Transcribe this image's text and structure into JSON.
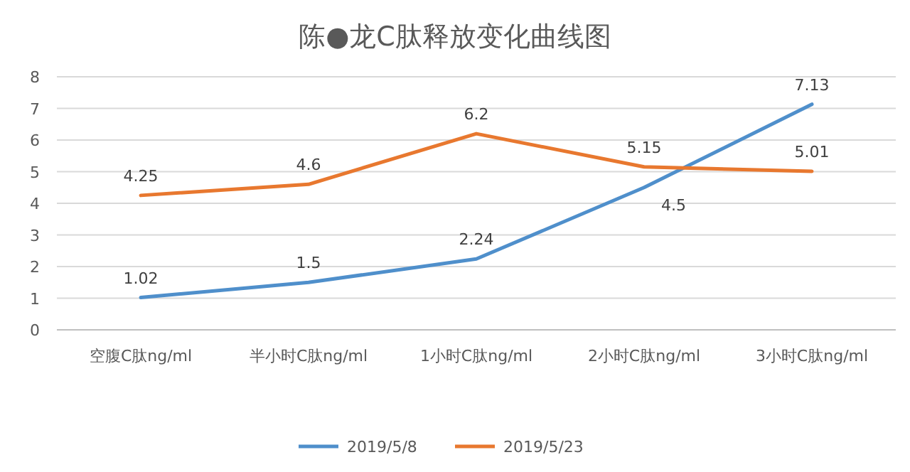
{
  "chart_data": {
    "type": "line",
    "title": "陈●龙C肽释放变化曲线图",
    "categories": [
      "空腹C肽ng/ml",
      "半小时C肽ng/ml",
      "1小时C肽ng/ml",
      "2小时C肽ng/ml",
      "3小时C肽ng/ml"
    ],
    "series": [
      {
        "name": "2019/5/8",
        "color": "#4f8fcb",
        "values": [
          1.02,
          1.5,
          2.24,
          4.5,
          7.13
        ]
      },
      {
        "name": "2019/5/23",
        "color": "#e8782f",
        "values": [
          4.25,
          4.6,
          6.2,
          5.15,
          5.01
        ]
      }
    ],
    "ylim": [
      0,
      8
    ],
    "yticks": [
      0,
      1,
      2,
      3,
      4,
      5,
      6,
      7,
      8
    ],
    "grid": "y",
    "legend": "bottom",
    "data_labels": true,
    "marker": "none",
    "line_style": "solid"
  }
}
